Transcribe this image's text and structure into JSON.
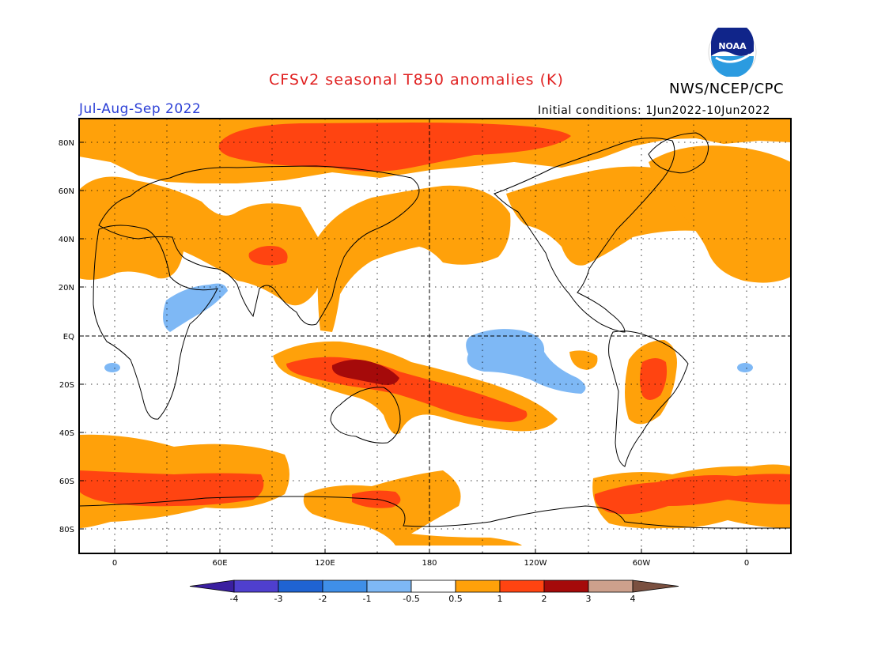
{
  "header": {
    "title": "CFSv2 seasonal T850 anomalies (K)",
    "org": "NWS/NCEP/CPC",
    "season": "Jul-Aug-Sep 2022",
    "init": "Initial conditions: 1Jun2022-10Jun2022",
    "logo_text": "NOAA"
  },
  "map": {
    "lat_labels": [
      "80N",
      "60N",
      "40N",
      "20N",
      "EQ",
      "20S",
      "40S",
      "60S",
      "80S"
    ],
    "lon_labels": [
      "0",
      "60E",
      "120E",
      "180",
      "120W",
      "60W",
      "0"
    ]
  },
  "legend": {
    "labels": [
      "-4",
      "-3",
      "-2",
      "-1",
      "-0.5",
      "0.5",
      "1",
      "2",
      "3",
      "4"
    ],
    "colors": [
      "#3a1fa0",
      "#4f3fce",
      "#1f63d2",
      "#3f8fe8",
      "#7eb8f5",
      "#ffffff",
      "#ffa10a",
      "#ff4411",
      "#a50a0a",
      "#cda08c",
      "#7a5040"
    ]
  },
  "colors": {
    "title": "#e01f1f",
    "season": "#2b3fd6",
    "anom_light": "#ffa10a",
    "anom_mid": "#ff4411",
    "anom_dark": "#a50a0a",
    "cold_light": "#7eb8f5"
  }
}
